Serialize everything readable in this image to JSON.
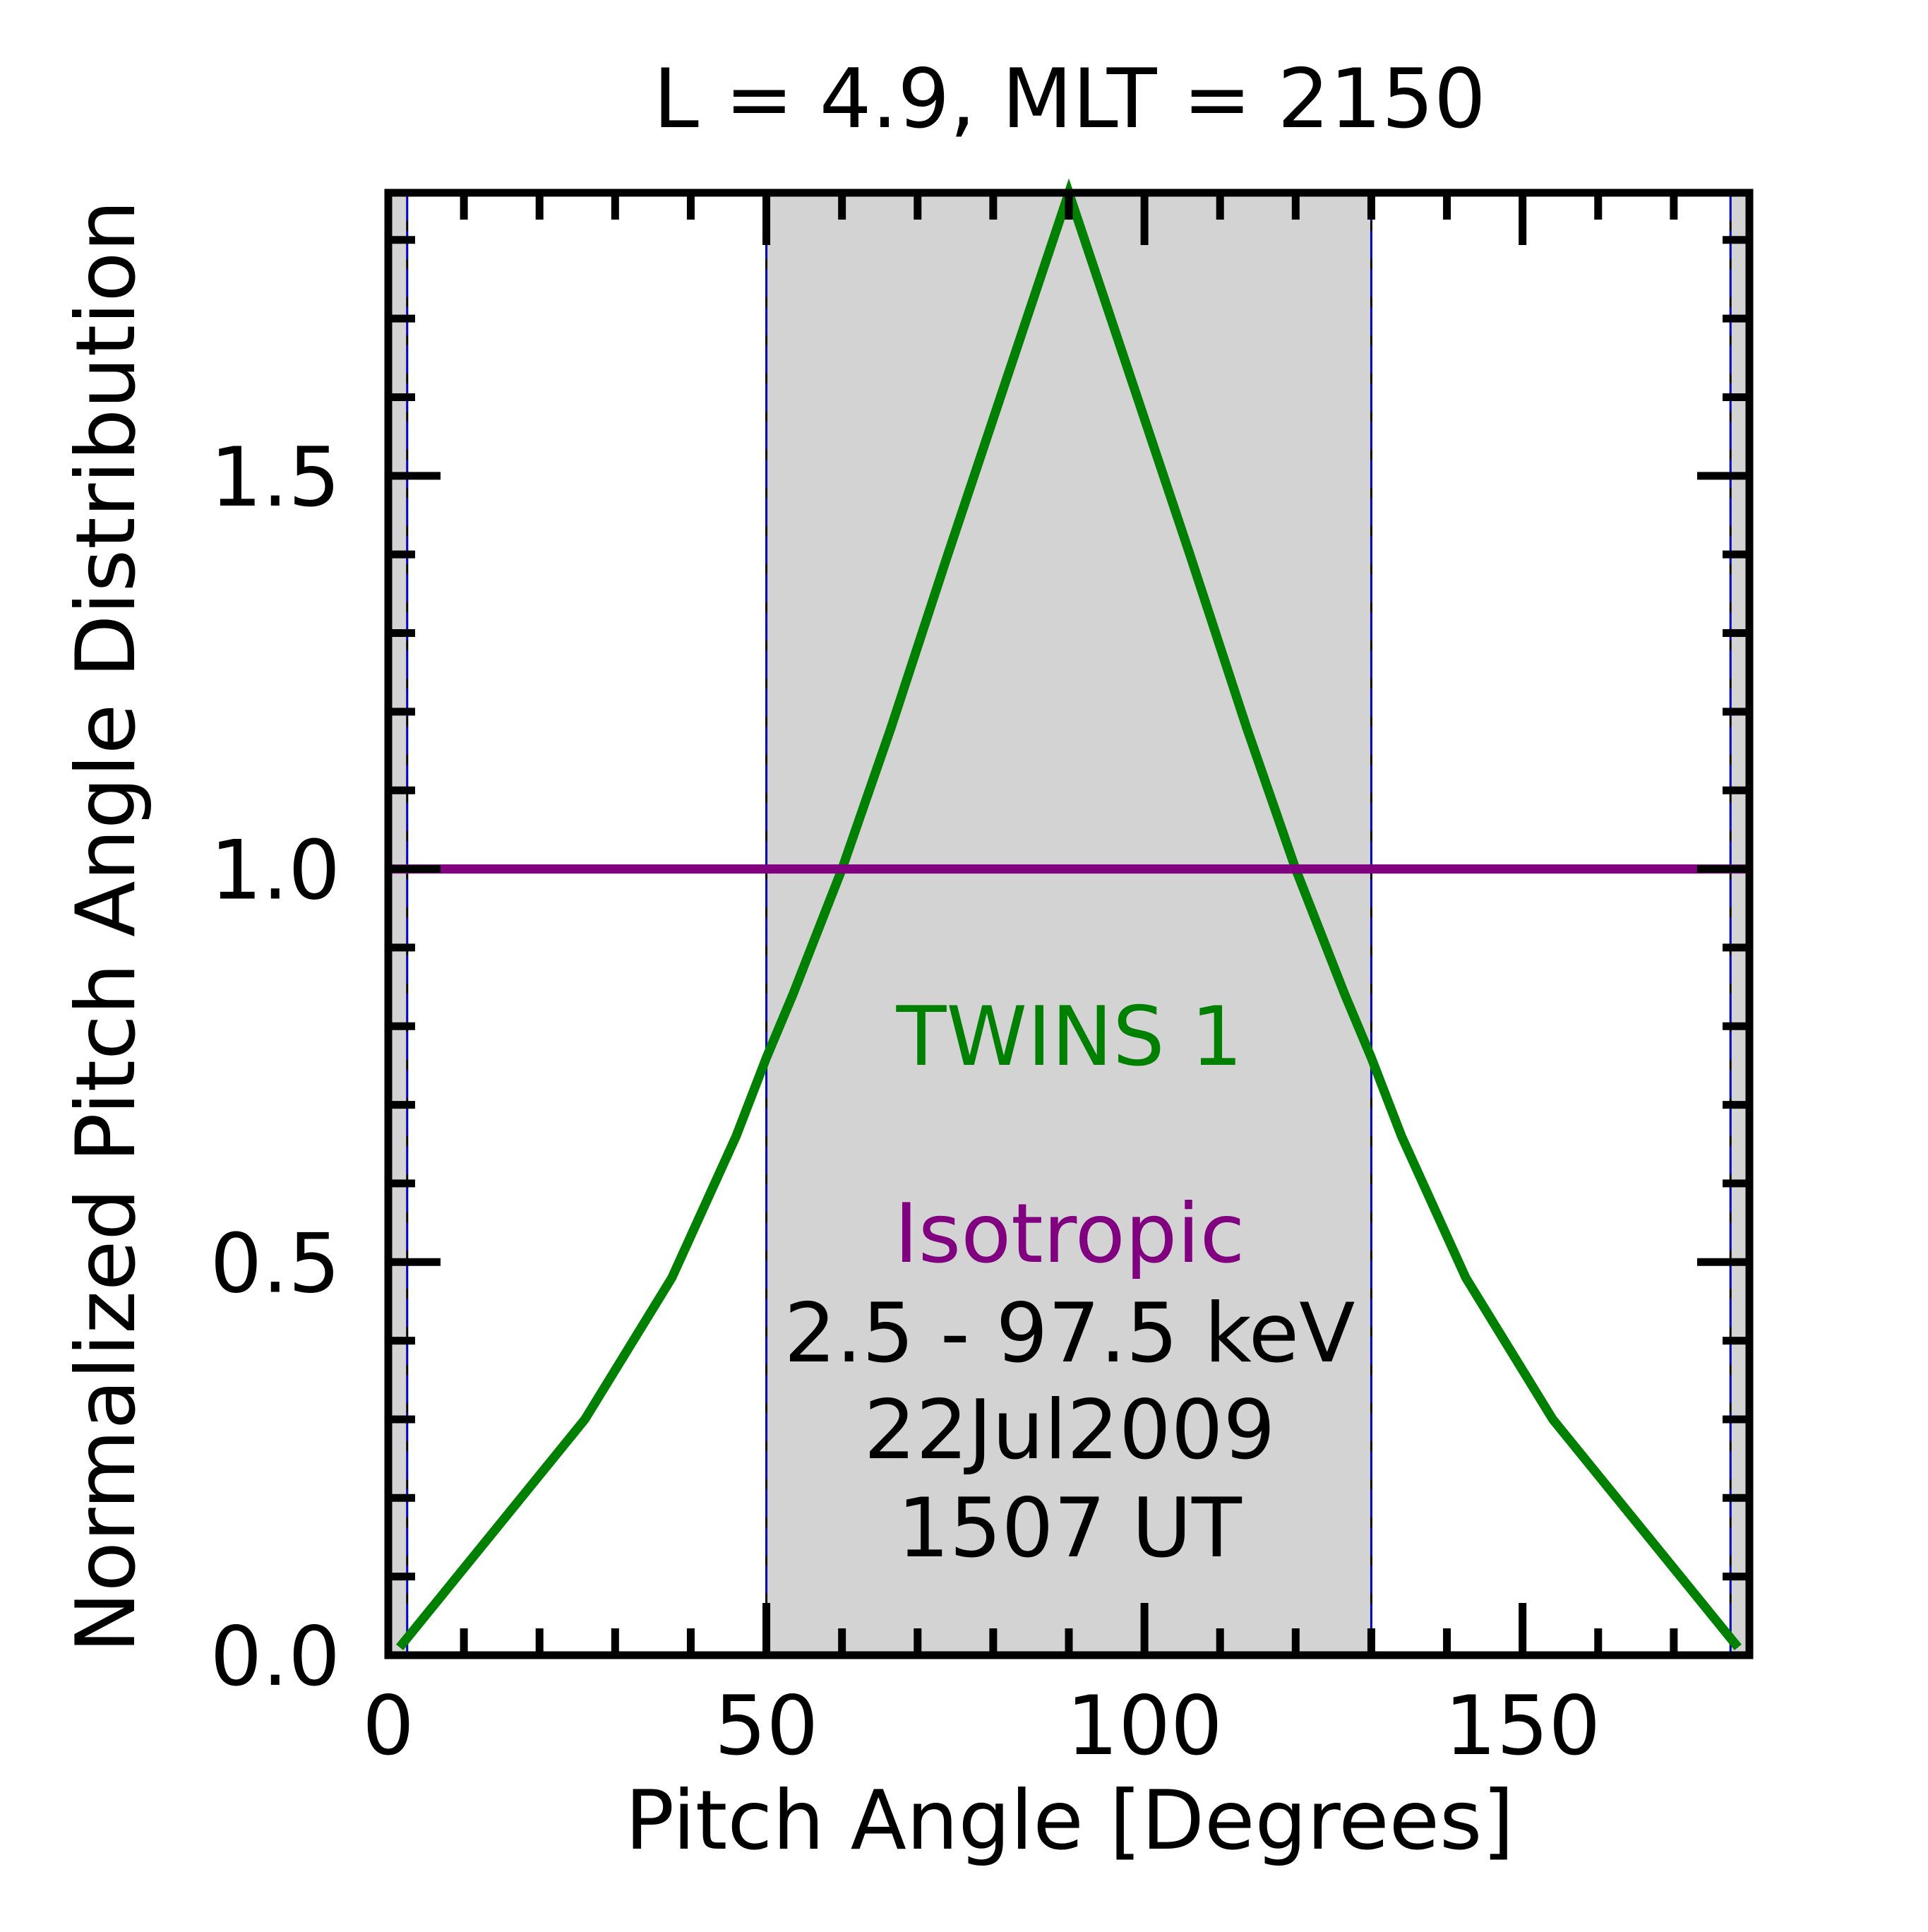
{
  "chart_data": {
    "type": "line",
    "title": "L =  4.9, MLT = 2150",
    "xlabel": "Pitch Angle [Degrees]",
    "ylabel": "Normalized Pitch Angle Distribution",
    "xlim": [
      0,
      180
    ],
    "ylim": [
      0,
      1.86
    ],
    "x_major_ticks": [
      0,
      50,
      100,
      150
    ],
    "x_tick_labels": [
      "0",
      "50",
      "100",
      "150"
    ],
    "x_minor_ticks": [
      10,
      20,
      30,
      40,
      60,
      70,
      80,
      90,
      110,
      120,
      130,
      140,
      160,
      170
    ],
    "y_major_ticks": [
      0.0,
      0.5,
      1.0,
      1.5
    ],
    "y_tick_labels": [
      "0.0",
      "0.5",
      "1.0",
      "1.5"
    ],
    "y_minor_ticks": [
      0.1,
      0.2,
      0.3,
      0.4,
      0.6,
      0.7,
      0.8,
      0.9,
      1.1,
      1.2,
      1.3,
      1.4,
      1.6,
      1.7,
      1.8
    ],
    "grid": false,
    "shaded_regions": [
      {
        "x0": 0,
        "x1": 2.5,
        "color": "#d3d3d3"
      },
      {
        "x0": 50,
        "x1": 130,
        "color": "#d3d3d3"
      },
      {
        "x0": 177.5,
        "x1": 180,
        "color": "#d3d3d3"
      }
    ],
    "vertical_lines": [
      2.5,
      50,
      130,
      177.5
    ],
    "series": [
      {
        "name": "TWINS 1",
        "color": "#008000",
        "x": [
          1.5,
          26,
          37.5,
          46,
          50,
          53.5,
          60,
          66.5,
          74,
          90,
          106,
          113.5,
          120,
          126.5,
          130,
          134,
          142.5,
          154,
          178.5
        ],
        "y": [
          0.01,
          0.3,
          0.48,
          0.66,
          0.76,
          0.84,
          1.0,
          1.18,
          1.4,
          1.86,
          1.4,
          1.18,
          1.0,
          0.84,
          0.76,
          0.66,
          0.48,
          0.3,
          0.01
        ]
      },
      {
        "name": "Isotropic",
        "color": "#800080",
        "x": [
          0.5,
          179.5
        ],
        "y": [
          1.0,
          1.0
        ]
      }
    ],
    "annotations": {
      "series_label_twins": "TWINS 1",
      "series_label_isotropic": "Isotropic",
      "energy_range": "2.5 - 97.5 keV",
      "date": "22Jul2009",
      "time": "1507 UT"
    },
    "colors": {
      "twins": "#008000",
      "isotropic": "#800080",
      "shade": "#d3d3d3",
      "vline_blue": "#0000ff",
      "vline_dark": "#000000",
      "axis": "#000000"
    }
  }
}
